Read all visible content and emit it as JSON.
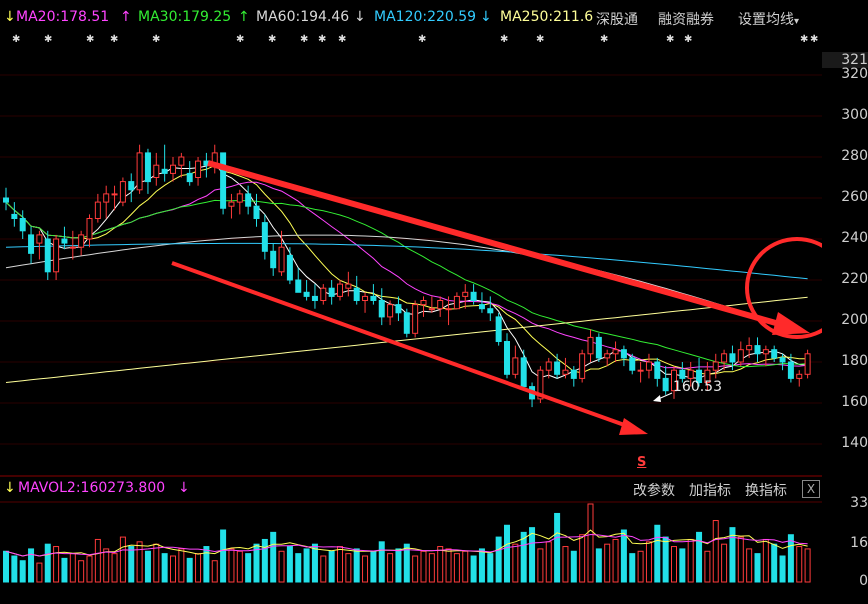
{
  "topbar": {
    "ma20": "MA20:178.51",
    "ma30": "MA30:179.25",
    "ma60": "MA60:194.46",
    "ma120": "MA120:220.59",
    "ma250": "MA250:211.6",
    "btn_hk": "深股通",
    "btn_margin": "融资融券",
    "btn_ma_settings": "设置均线"
  },
  "colors": {
    "up": "#ff3b3b",
    "down": "#22e0e8",
    "ma5": "#ffffff",
    "ma10": "#ffff55",
    "ma20": "#ff44ff",
    "ma30": "#33ee33",
    "ma60": "#d8d8d8",
    "ma120": "#33ccff",
    "ma250": "#ffff99",
    "annotation": "#ff2a2a"
  },
  "price_axis": {
    "ticks": [
      "321",
      "320",
      "300",
      "280",
      "260",
      "240",
      "220",
      "200",
      "180",
      "160",
      "140"
    ]
  },
  "annotations": {
    "low_label": "160.53",
    "s_marker": "S"
  },
  "volume_panel": {
    "label": "MAVOL2:160273.800",
    "btn_params": "改参数",
    "btn_add": "加指标",
    "btn_switch": "换指标",
    "close": "X",
    "ticks": [
      "33",
      "16",
      "0"
    ]
  },
  "chart_data": {
    "type": "candlestick",
    "ylim": [
      130,
      321
    ],
    "ohlc": [
      [
        260,
        265,
        254,
        258
      ],
      [
        252,
        258,
        246,
        250
      ],
      [
        250,
        254,
        240,
        244
      ],
      [
        242,
        246,
        228,
        233
      ],
      [
        238,
        244,
        230,
        242
      ],
      [
        240,
        244,
        220,
        224
      ],
      [
        224,
        242,
        220,
        240
      ],
      [
        240,
        246,
        235,
        238
      ],
      [
        236,
        244,
        230,
        236
      ],
      [
        236,
        244,
        232,
        242
      ],
      [
        240,
        252,
        236,
        250
      ],
      [
        250,
        262,
        248,
        258
      ],
      [
        258,
        266,
        250,
        262
      ],
      [
        262,
        266,
        254,
        262
      ],
      [
        258,
        270,
        256,
        268
      ],
      [
        268,
        272,
        258,
        264
      ],
      [
        264,
        286,
        262,
        282
      ],
      [
        282,
        284,
        262,
        268
      ],
      [
        270,
        282,
        266,
        276
      ],
      [
        274,
        286,
        268,
        272
      ],
      [
        272,
        280,
        268,
        276
      ],
      [
        276,
        282,
        270,
        280
      ],
      [
        272,
        278,
        266,
        268
      ],
      [
        270,
        280,
        266,
        278
      ],
      [
        278,
        282,
        270,
        276
      ],
      [
        276,
        286,
        272,
        282
      ],
      [
        282,
        282,
        252,
        255
      ],
      [
        256,
        262,
        250,
        258
      ],
      [
        258,
        264,
        252,
        262
      ],
      [
        262,
        266,
        252,
        256
      ],
      [
        256,
        262,
        246,
        250
      ],
      [
        248,
        252,
        230,
        234
      ],
      [
        234,
        238,
        222,
        226
      ],
      [
        224,
        244,
        222,
        236
      ],
      [
        232,
        236,
        218,
        220
      ],
      [
        220,
        226,
        214,
        214
      ],
      [
        214,
        220,
        210,
        212
      ],
      [
        212,
        218,
        206,
        210
      ],
      [
        210,
        218,
        208,
        216
      ],
      [
        216,
        220,
        208,
        212
      ],
      [
        212,
        220,
        210,
        218
      ],
      [
        216,
        224,
        212,
        218
      ],
      [
        216,
        222,
        208,
        210
      ],
      [
        210,
        214,
        204,
        212
      ],
      [
        212,
        218,
        208,
        210
      ],
      [
        210,
        216,
        198,
        202
      ],
      [
        202,
        210,
        198,
        208
      ],
      [
        208,
        212,
        200,
        204
      ],
      [
        204,
        206,
        192,
        194
      ],
      [
        194,
        210,
        192,
        208
      ],
      [
        208,
        212,
        202,
        210
      ],
      [
        206,
        212,
        204,
        206
      ],
      [
        206,
        212,
        202,
        210
      ],
      [
        206,
        212,
        198,
        206
      ],
      [
        206,
        214,
        206,
        212
      ],
      [
        212,
        218,
        206,
        214
      ],
      [
        214,
        218,
        208,
        210
      ],
      [
        208,
        214,
        204,
        206
      ],
      [
        206,
        212,
        200,
        204
      ],
      [
        202,
        204,
        188,
        190
      ],
      [
        190,
        194,
        172,
        174
      ],
      [
        174,
        188,
        172,
        182
      ],
      [
        182,
        186,
        166,
        168
      ],
      [
        168,
        170,
        158,
        162
      ],
      [
        162,
        178,
        160,
        176
      ],
      [
        176,
        182,
        172,
        180
      ],
      [
        180,
        184,
        172,
        174
      ],
      [
        174,
        182,
        172,
        176
      ],
      [
        176,
        178,
        168,
        172
      ],
      [
        172,
        186,
        170,
        184
      ],
      [
        184,
        196,
        180,
        192
      ],
      [
        192,
        194,
        180,
        182
      ],
      [
        182,
        186,
        178,
        184
      ],
      [
        184,
        190,
        180,
        186
      ],
      [
        186,
        188,
        178,
        182
      ],
      [
        182,
        184,
        174,
        176
      ],
      [
        176,
        180,
        170,
        176
      ],
      [
        176,
        184,
        172,
        180
      ],
      [
        180,
        182,
        168,
        172
      ],
      [
        172,
        178,
        164,
        166
      ],
      [
        166,
        178,
        162,
        176
      ],
      [
        176,
        180,
        170,
        172
      ],
      [
        172,
        180,
        168,
        176
      ],
      [
        176,
        182,
        168,
        170
      ],
      [
        170,
        180,
        166,
        176
      ],
      [
        176,
        184,
        172,
        180
      ],
      [
        180,
        186,
        176,
        184
      ],
      [
        184,
        188,
        176,
        180
      ],
      [
        180,
        190,
        178,
        186
      ],
      [
        186,
        192,
        182,
        188
      ],
      [
        188,
        192,
        180,
        184
      ],
      [
        184,
        188,
        178,
        186
      ],
      [
        186,
        188,
        180,
        182
      ],
      [
        182,
        184,
        176,
        180
      ],
      [
        180,
        184,
        170,
        172
      ],
      [
        172,
        176,
        168,
        174
      ],
      [
        174,
        186,
        172,
        184
      ]
    ],
    "volume": [
      13,
      11,
      9,
      14,
      8,
      16,
      15,
      10,
      12,
      9,
      11,
      18,
      14,
      12,
      19,
      15,
      17,
      13,
      16,
      12,
      11,
      14,
      10,
      12,
      15,
      9,
      22,
      14,
      13,
      12,
      16,
      18,
      21,
      13,
      15,
      12,
      14,
      16,
      11,
      13,
      15,
      12,
      14,
      11,
      13,
      17,
      12,
      14,
      16,
      11,
      13,
      12,
      15,
      14,
      12,
      13,
      11,
      14,
      12,
      19,
      24,
      16,
      21,
      23,
      14,
      17,
      29,
      15,
      13,
      20,
      33,
      14,
      16,
      18,
      22,
      12,
      13,
      17,
      24,
      19,
      15,
      14,
      18,
      21,
      13,
      26,
      16,
      23,
      19,
      14,
      12,
      18,
      16,
      11,
      20,
      15,
      14
    ],
    "ma_end_values": {
      "MA20": 178.51,
      "MA30": 179.25,
      "MA60": 194.46,
      "MA120": 220.59,
      "MA250": 211.6
    },
    "min_label": 160.53
  }
}
